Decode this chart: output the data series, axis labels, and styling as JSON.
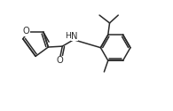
{
  "bg_color": "#ffffff",
  "line_color": "#2a2a2a",
  "line_width": 1.1,
  "font_size": 7.2,
  "fig_width": 1.95,
  "fig_height": 1.25,
  "dpi": 100,
  "xlim": [
    0.0,
    10.5
  ],
  "ylim": [
    -1.5,
    5.5
  ]
}
